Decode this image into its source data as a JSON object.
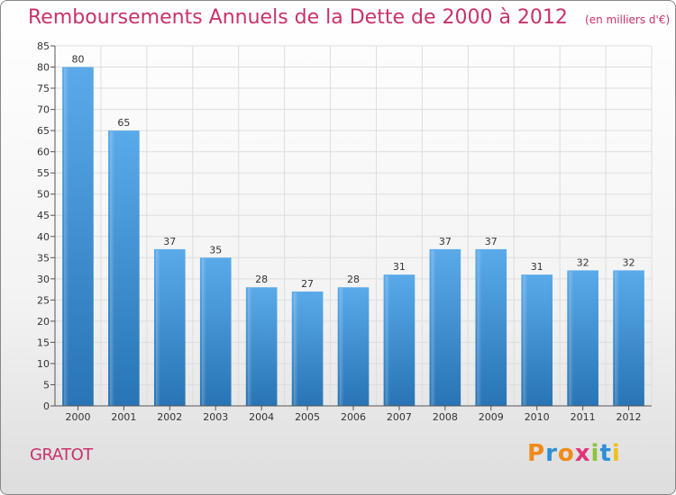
{
  "title": "Remboursements Annuels de la Dette de 2000 à 2012",
  "unit_note": "(en milliers d'€)",
  "commune": "GRATOT",
  "brand": "Proxiti",
  "colors": {
    "title": "#c8326a",
    "bar_light": "#5aaaea",
    "bar_dark": "#2874b4",
    "grid": "#dddddd",
    "axis": "#555555"
  },
  "chart_data": {
    "type": "bar",
    "title": "Remboursements Annuels de la Dette de 2000 à 2012",
    "subtitle": "(en milliers d'€)",
    "xlabel": "",
    "ylabel": "",
    "categories": [
      "2000",
      "2001",
      "2002",
      "2003",
      "2004",
      "2005",
      "2006",
      "2007",
      "2008",
      "2009",
      "2010",
      "2011",
      "2012"
    ],
    "values": [
      80,
      65,
      37,
      35,
      28,
      27,
      28,
      31,
      37,
      37,
      31,
      32,
      32
    ],
    "ylim": [
      0,
      85
    ],
    "yticks": [
      0,
      5,
      10,
      15,
      20,
      25,
      30,
      35,
      40,
      45,
      50,
      55,
      60,
      65,
      70,
      75,
      80,
      85
    ],
    "grid": true,
    "legend": "none"
  }
}
